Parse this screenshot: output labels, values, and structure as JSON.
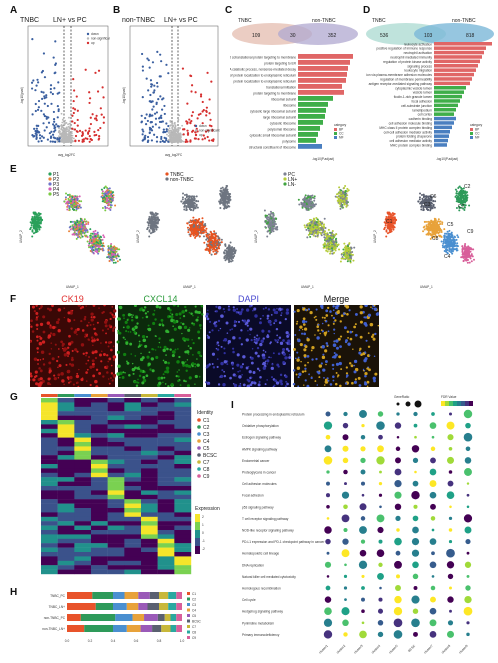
{
  "panels": {
    "A": {
      "letter": "A",
      "group_left": "TNBC",
      "comparison": "LN+ vs PC",
      "xlabel": "avg_log2FC",
      "ylabel": "-log10(pval)",
      "legend": [
        "down",
        "non-significant",
        "up"
      ]
    },
    "B": {
      "letter": "B",
      "group_left": "non-TNBC",
      "comparison": "LN+ vs PC",
      "xlabel": "avg_log2FC",
      "ylabel": "-log10(pval)",
      "legend": [
        "down",
        "non-significant",
        "up"
      ]
    },
    "C": {
      "letter": "C",
      "left": "TNBC",
      "right": "non-TNBC",
      "counts": [
        "109",
        "30",
        "352"
      ],
      "terms": [
        "SRP-dependent cotranslational protein targeting to membrane",
        "protein targeting to ER",
        "nuclear-transcribed mRNA catabolic process, nonsense-mediated decay",
        "establishment of protein localization to endoplasmic reticulum",
        "protein localization to endoplasmic reticulum",
        "translational initiation",
        "protein targeting to membrane",
        "ribosomal subunit",
        "ribosome",
        "cytosolic large ribosomal subunit",
        "large ribosomal subunit",
        "cytosolic ribosome",
        "polysomal ribosome",
        "cytosolic small ribosomal subunit",
        "polysome",
        "structural constituent of ribosome"
      ],
      "legend_title": "category",
      "legend": [
        "BP",
        "CC",
        "MF"
      ],
      "xlabel": "-log10(P.adjust)"
    },
    "D": {
      "letter": "D",
      "left": "TNBC",
      "right": "non-TNBC",
      "counts": [
        "536",
        "103",
        "818"
      ],
      "terms": [
        "leukocyte activation",
        "positive regulation of immune response",
        "neutrophil activation",
        "neutrophil mediated immunity",
        "regulation of protein kinase activity",
        "signaling process",
        "leukocyte migration",
        "cell-cell adhesion via plasma-membrane adhesion molecules",
        "regulation of membrane permeability",
        "antigen receptor-mediated signaling pathway",
        "cytoplasmic vesicle lumen",
        "vesicle lumen",
        "ficolin-1-rich granule lumen",
        "focal adhesion",
        "cell-substrate junction",
        "lamellipodium",
        "cell cortex",
        "cadherin binding",
        "cell adhesion molecule binding",
        "MHC class II protein complex binding",
        "cell-cell adhesion mediator activity",
        "protein folding chaperone",
        "cell adhesion mediator activity",
        "MHC protein complex binding"
      ],
      "legend_title": "category",
      "legend": [
        "BP",
        "CC",
        "MF"
      ],
      "xlabel": "-log10(P.adjust)"
    },
    "E": {
      "letter": "E",
      "xlabel": "UMAP_1",
      "ylabel": "UMAP_2",
      "umap1_legend": [
        "P1",
        "P2",
        "P3",
        "P4",
        "P5"
      ],
      "umap2_legend": [
        "TNBC",
        "non-TNBC"
      ],
      "umap3_legend": [
        "PC",
        "LN+",
        "LN-"
      ],
      "umap4_labels": [
        "C1",
        "C2",
        "C3",
        "C4",
        "C5",
        "C6",
        "C7",
        "C8",
        "C9"
      ]
    },
    "F": {
      "letter": "F",
      "stains": [
        "CK19",
        "CXCL14",
        "DAPI",
        "Merge"
      ]
    },
    "G": {
      "letter": "G",
      "identity_title": "Identity",
      "identity": [
        "C1",
        "C2",
        "C3",
        "C4",
        "C5",
        "BCSC",
        "C7",
        "C8",
        "C9"
      ],
      "expression_title": "Expression",
      "expression_ticks": [
        "2",
        "1",
        "0",
        "-1",
        "-2"
      ]
    },
    "H": {
      "letter": "H",
      "rows": [
        "TNBC_PC",
        "TNBC_LN+",
        "non-TNBC_PC",
        "non-TNBC_LN+"
      ],
      "xticks": [
        "0.0",
        "0.2",
        "0.4",
        "0.6",
        "0.8",
        "1.0"
      ],
      "legend": [
        "C1",
        "C2",
        "C3",
        "C4",
        "C5",
        "BCSC",
        "C7",
        "C8",
        "C9"
      ]
    },
    "I": {
      "letter": "I",
      "pathways": [
        "Protein processing in endoplasmic reticulum",
        "Oxidative phosphorylation",
        "Estrogen signaling pathway",
        "AMPK signaling pathway",
        "Endometrial cancer",
        "Proteoglycans in cancer",
        "Cell adhesion molecules",
        "Focal adhesion",
        "p53 signaling pathway",
        "T cell receptor signaling pathway",
        "NOD-like receptor signaling pathway",
        "PD-L1 expression and PD-1 checkpoint pathway in cancer",
        "Hematopoietic cell lineage",
        "DNA replication",
        "Natural killer cell mediated cytotoxicity",
        "Homologous recombination",
        "Cell cycle",
        "Hedgehog signaling pathway",
        "Pyrimidine metabolism",
        "Primary immunodeficiency"
      ],
      "clusters": [
        "cluster1",
        "cluster2",
        "cluster3",
        "cluster4",
        "cluster5",
        "BCSC",
        "cluster7",
        "cluster8",
        "cluster9"
      ],
      "size_title": "GeneRatio",
      "color_title": "FDR Value"
    }
  },
  "colors": {
    "down": "#3a5fa0",
    "up": "#d62f2f",
    "ns": "#b8b8b8",
    "venn_left_C": "#e8c4b8",
    "venn_right_C": "#b0a8d0",
    "venn_left_D": "#b8e0d8",
    "venn_right_D": "#7cb8d8",
    "cat_BP": "#e06666",
    "cat_CC": "#3fae49",
    "cat_MF": "#4a7fc0",
    "patients": [
      "#2aa05a",
      "#e8833a",
      "#6f74c8",
      "#d65fb4",
      "#7ac943"
    ],
    "tnbc": "#e8531f",
    "nontnbc": "#6e7580",
    "tissue": [
      "#7d8292",
      "#b5cc3a",
      "#40a440"
    ],
    "clusters": [
      "#e8532a",
      "#2e9a5a",
      "#4a8fd0",
      "#e8a23a",
      "#9a5ab8",
      "#5a6070",
      "#c8b83a",
      "#2aa8a0",
      "#d85f9a"
    ]
  }
}
